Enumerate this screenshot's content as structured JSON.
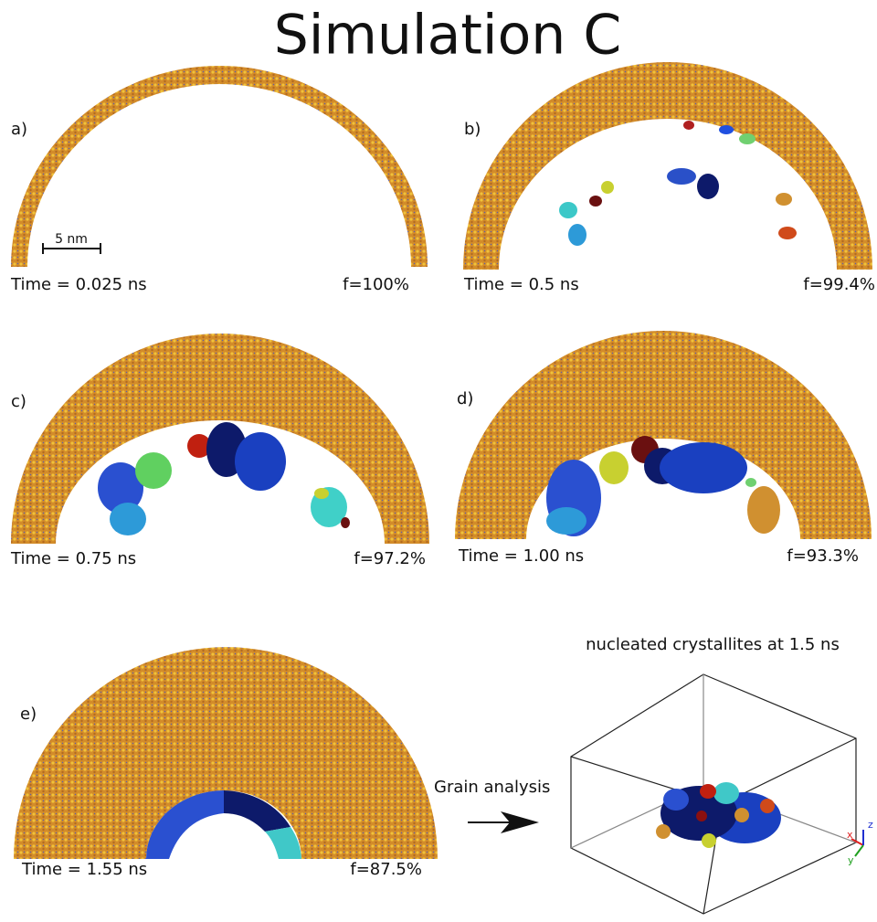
{
  "title": "Simulation C",
  "panels": [
    {
      "label": "a)",
      "time": "Time = 0.025 ns",
      "fraction": "f=100%"
    },
    {
      "label": "b)",
      "time": "Time = 0.5 ns",
      "fraction": "f=99.4%"
    },
    {
      "label": "c)",
      "time": "Time = 0.75 ns",
      "fraction": "f=97.2%"
    },
    {
      "label": "d)",
      "time": "Time = 1.00 ns",
      "fraction": "f=93.3%"
    },
    {
      "label": "e)",
      "time": "Time = 1.55 ns",
      "fraction": "f=87.5%"
    }
  ],
  "scale_bar": "5 nm",
  "arrow_label": "Grain analysis",
  "inset": {
    "title": "nucleated crystallites at 1.5 ns",
    "axes": [
      "x",
      "y",
      "z"
    ]
  }
}
